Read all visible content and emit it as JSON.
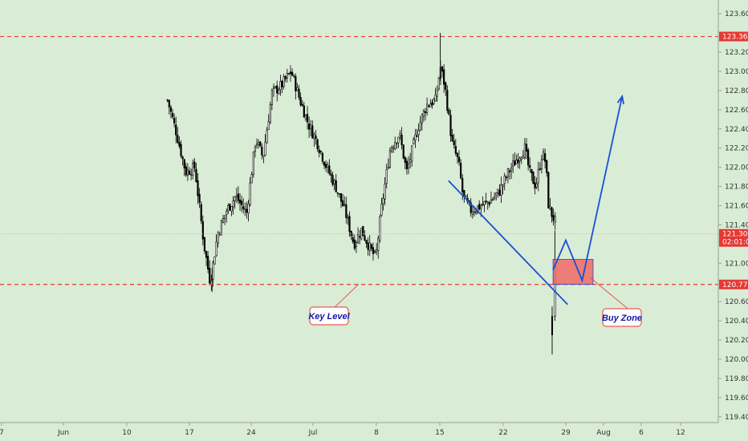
{
  "chart_data": {
    "type": "candlestick",
    "y_ticks": [
      "123.600",
      "123.200",
      "123.000",
      "122.800",
      "122.600",
      "122.400",
      "122.200",
      "122.000",
      "121.800",
      "121.600",
      "121.400",
      "121.000",
      "120.600",
      "120.400",
      "120.200",
      "120.000",
      "119.800",
      "119.600",
      "119.400"
    ],
    "x_ticks": [
      "7",
      "Jun",
      "10",
      "17",
      "24",
      "Jul",
      "8",
      "15",
      "22",
      "29",
      "Aug",
      "6",
      "12"
    ],
    "ylim": [
      119.32,
      123.72
    ],
    "grid": false,
    "levels": [
      {
        "name": "resistance",
        "value": 123.363,
        "label": "123.363",
        "color": "#e53935"
      },
      {
        "name": "key-level",
        "value": 120.779,
        "label": "120.779",
        "color": "#e53935"
      }
    ],
    "current_price": {
      "value": 121.306,
      "label": "121.306",
      "countdown": "02:01:03",
      "color": "#e53935"
    },
    "trendline": {
      "from": {
        "x": 14.9,
        "y": 121.86
      },
      "to": {
        "x": 28.0,
        "y": 120.57
      },
      "color": "#1a4fd6"
    },
    "buy_zone": {
      "x0": 26.4,
      "x1": 30.8,
      "y0": 120.78,
      "y1": 121.04,
      "color": "#ef6a67"
    },
    "projection": [
      {
        "x": 26.4,
        "y": 120.93
      },
      {
        "x": 27.8,
        "y": 121.24
      },
      {
        "x": 29.6,
        "y": 120.82
      },
      {
        "x": 34.0,
        "y": 122.74
      }
    ],
    "annotations": [
      {
        "name": "key-level",
        "text": "Key Level",
        "color": "#1515a8",
        "border": "#e53935"
      },
      {
        "name": "buy-zone",
        "text": "Buy Zone",
        "color": "#1515a8",
        "border": "#e53935"
      }
    ],
    "close_path": [
      {
        "x": -16.0,
        "y": 122.7
      },
      {
        "x": -15.0,
        "y": 122.35
      },
      {
        "x": -14.0,
        "y": 121.95
      },
      {
        "x": -13.0,
        "y": 122.0
      },
      {
        "x": -12.0,
        "y": 121.2
      },
      {
        "x": -11.3,
        "y": 120.8
      },
      {
        "x": -10.5,
        "y": 121.3
      },
      {
        "x": -9.5,
        "y": 121.55
      },
      {
        "x": -8.5,
        "y": 121.7
      },
      {
        "x": -7.3,
        "y": 121.52
      },
      {
        "x": -6.3,
        "y": 122.3
      },
      {
        "x": -5.5,
        "y": 122.1
      },
      {
        "x": -4.5,
        "y": 122.78
      },
      {
        "x": -3.5,
        "y": 122.85
      },
      {
        "x": -2.4,
        "y": 123.0
      },
      {
        "x": -1.5,
        "y": 122.72
      },
      {
        "x": -0.5,
        "y": 122.45
      },
      {
        "x": 0.5,
        "y": 122.25
      },
      {
        "x": 1.5,
        "y": 122.0
      },
      {
        "x": 2.5,
        "y": 121.8
      },
      {
        "x": 3.5,
        "y": 121.55
      },
      {
        "x": 4.5,
        "y": 121.2
      },
      {
        "x": 5.3,
        "y": 121.35
      },
      {
        "x": 6.3,
        "y": 121.15
      },
      {
        "x": 6.9,
        "y": 121.05
      },
      {
        "x": 7.5,
        "y": 121.55
      },
      {
        "x": 8.5,
        "y": 122.2
      },
      {
        "x": 9.5,
        "y": 122.35
      },
      {
        "x": 10.3,
        "y": 121.95
      },
      {
        "x": 11.5,
        "y": 122.4
      },
      {
        "x": 12.5,
        "y": 122.65
      },
      {
        "x": 13.5,
        "y": 122.7
      },
      {
        "x": 14.0,
        "y": 123.05
      },
      {
        "x": 14.5,
        "y": 122.85
      },
      {
        "x": 15.3,
        "y": 122.25
      },
      {
        "x": 16.0,
        "y": 122.05
      },
      {
        "x": 16.5,
        "y": 121.7
      },
      {
        "x": 17.3,
        "y": 121.55
      },
      {
        "x": 18.5,
        "y": 121.6
      },
      {
        "x": 19.5,
        "y": 121.65
      },
      {
        "x": 20.5,
        "y": 121.75
      },
      {
        "x": 21.5,
        "y": 121.95
      },
      {
        "x": 22.5,
        "y": 122.1
      },
      {
        "x": 23.3,
        "y": 122.2
      },
      {
        "x": 23.8,
        "y": 121.95
      },
      {
        "x": 24.5,
        "y": 121.8
      },
      {
        "x": 25.2,
        "y": 122.15
      },
      {
        "x": 25.6,
        "y": 122.05
      },
      {
        "x": 25.9,
        "y": 121.6
      },
      {
        "x": 26.3,
        "y": 121.5
      },
      {
        "x": 26.8,
        "y": 121.4
      }
    ]
  }
}
